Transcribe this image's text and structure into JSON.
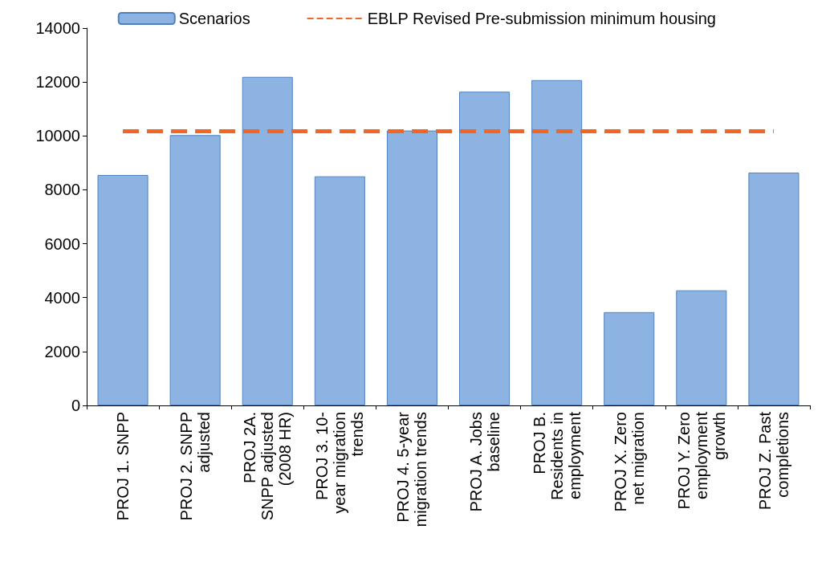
{
  "chart_data": {
    "type": "bar",
    "categories": [
      "PROJ 1. SNPP",
      "PROJ 2. SNPP\nadjusted",
      "PROJ 2A.\nSNPP adjusted\n(2008 HR)",
      "PROJ 3. 10-\nyear migration\ntrends",
      "PROJ 4. 5-year\nmigration trends",
      "PROJ A. Jobs\nbaseline",
      "PROJ B.\nResidents in\nemployment",
      "PROJ X. Zero\nnet migration",
      "PROJ Y. Zero\nemployment\ngrowth",
      "PROJ Z. Past\ncompletions"
    ],
    "series": [
      {
        "name": "Scenarios",
        "color": "#8db3e2",
        "values": [
          8550,
          10030,
          12190,
          8500,
          10200,
          11640,
          12070,
          3460,
          4270,
          8640
        ]
      },
      {
        "name": "EBLP Revised Pre-submission minimum housing",
        "type": "line",
        "color": "#f26522",
        "line_style": "dashed",
        "marker": "none",
        "values": [
          10170,
          10170,
          10170,
          10170,
          10170,
          10170,
          10170,
          10170,
          10170,
          10170
        ]
      }
    ],
    "ylim": [
      0,
      14000
    ],
    "yticks": [
      0,
      2000,
      4000,
      6000,
      8000,
      10000,
      12000,
      14000
    ],
    "grid": false,
    "legend": "top"
  }
}
